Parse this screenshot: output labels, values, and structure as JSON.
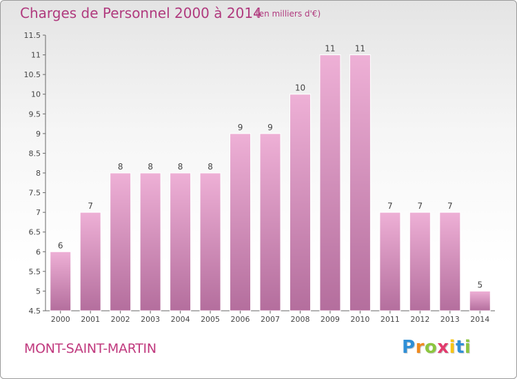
{
  "title": "Charges de Personnel 2000 à 2014",
  "subtitle": "(en milliers d'€)",
  "commune": "MONT-SAINT-MARTIN",
  "logo": {
    "letters": [
      "P",
      "r",
      "o",
      "x",
      "i",
      "t",
      "i"
    ],
    "colors": [
      "#2f8fd6",
      "#f08a1e",
      "#8cc63f",
      "#e23b6d",
      "#f5c518",
      "#2f8fd6",
      "#8cc63f"
    ]
  },
  "colors": {
    "bar_light": "#eeb0d6",
    "bar_dark": "#b46e9d",
    "title": "#b03a7e"
  },
  "chart_data": {
    "type": "bar",
    "title": "Charges de Personnel 2000 à 2014",
    "subtitle": "(en milliers d'€)",
    "categories": [
      "2000",
      "2001",
      "2002",
      "2003",
      "2004",
      "2005",
      "2006",
      "2007",
      "2008",
      "2009",
      "2010",
      "2011",
      "2012",
      "2013",
      "2014"
    ],
    "values": [
      6,
      7,
      8,
      8,
      8,
      8,
      9,
      9,
      10,
      11,
      11,
      7,
      7,
      7,
      5
    ],
    "ylim": [
      4.5,
      11.5
    ],
    "yticks": [
      "4.5",
      "5",
      "5.5",
      "6",
      "6.5",
      "7",
      "7.5",
      "8",
      "8.5",
      "9",
      "9.5",
      "10",
      "10.5",
      "11",
      "11.5"
    ],
    "grid": false,
    "legend": "none"
  }
}
